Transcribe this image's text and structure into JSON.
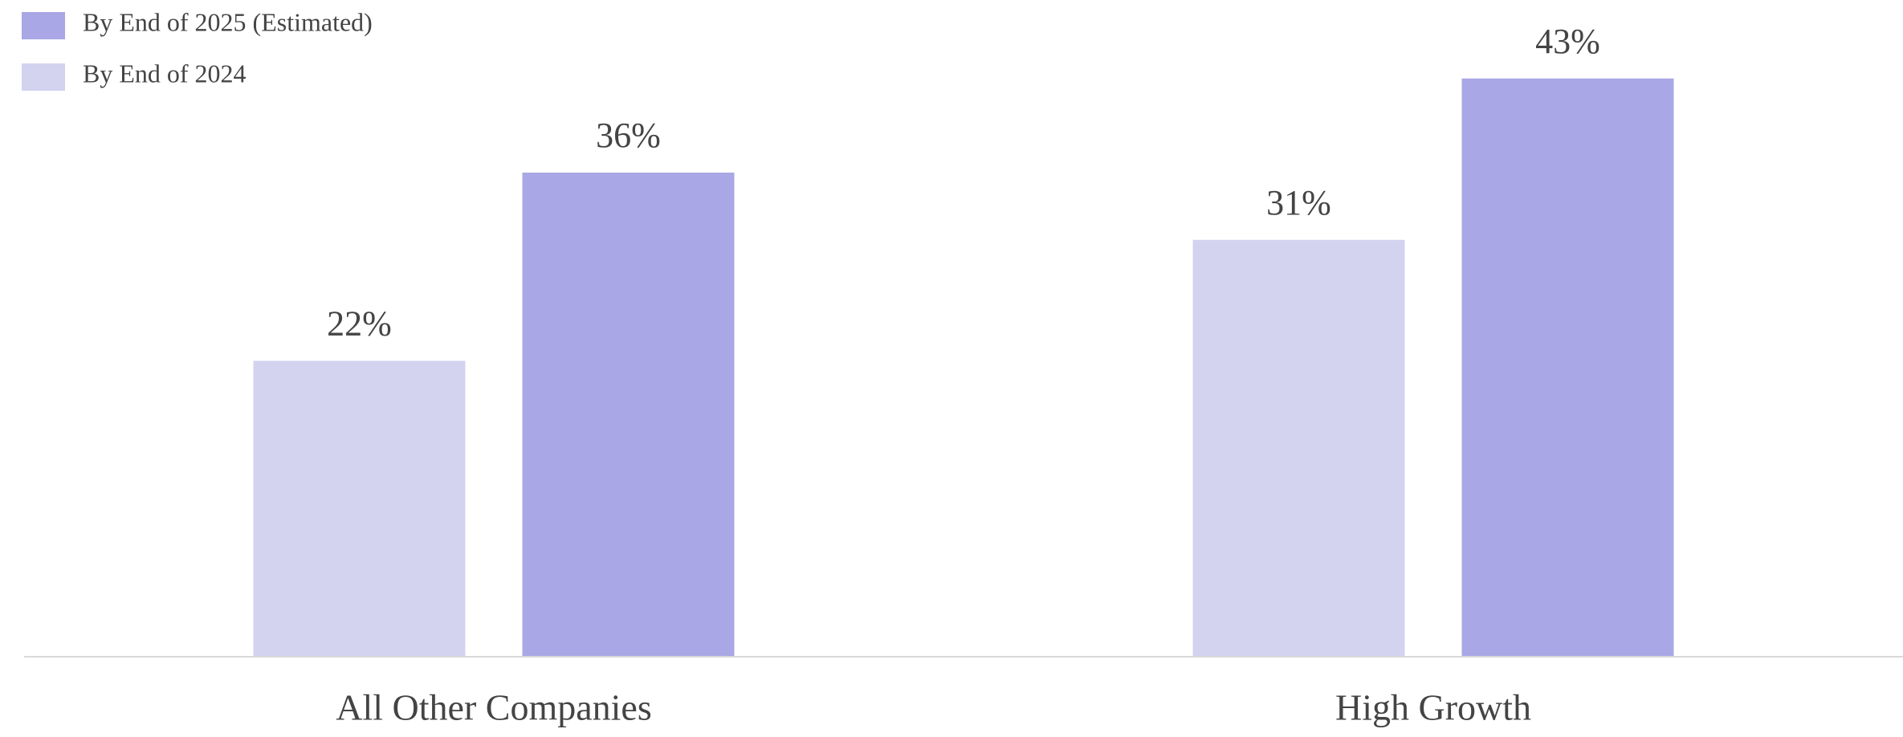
{
  "chart_data": {
    "type": "bar",
    "categories": [
      "All Other Companies",
      "High Growth"
    ],
    "series": [
      {
        "name": "By End of 2024",
        "color": "#d3d3f0",
        "values": [
          22,
          31
        ],
        "value_labels": [
          "22%",
          "31%"
        ]
      },
      {
        "name": "By End of 2025 (Estimated)",
        "color": "#a9a7e5",
        "values": [
          36,
          43
        ],
        "value_labels": [
          "36%",
          "43%"
        ]
      }
    ],
    "ylim": [
      0,
      48
    ],
    "grid": false,
    "legend": "upper left"
  }
}
